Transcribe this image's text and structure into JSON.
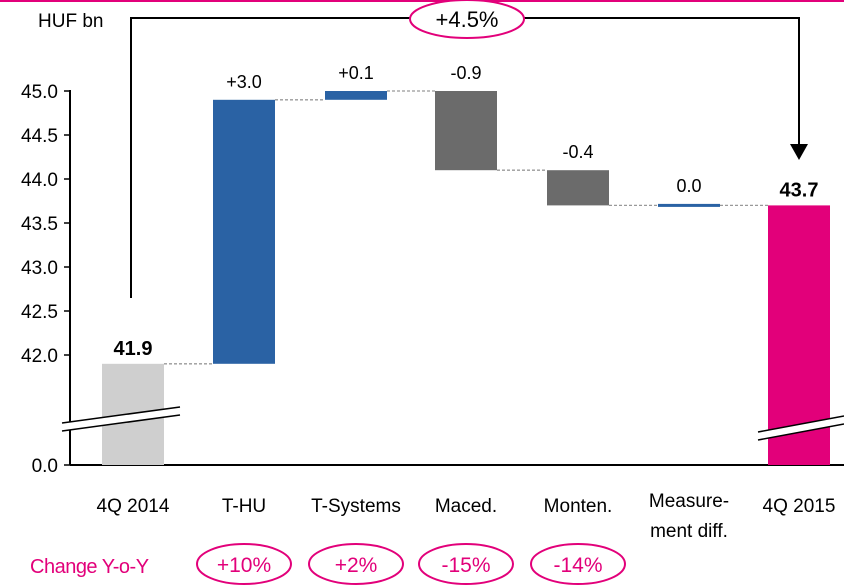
{
  "colors": {
    "accent": "#e2007a",
    "positive": "#2a62a4",
    "negative": "#6b6b6b",
    "start_total": "#cfcfcf",
    "end_total": "#e2007a"
  },
  "chart_data": {
    "type": "waterfall",
    "unit_label": "HUF bn",
    "y_ticks": [
      "45.0",
      "44.5",
      "44.0",
      "43.5",
      "43.0",
      "42.5",
      "42.0",
      "0.0"
    ],
    "ylim": [
      42.0,
      45.0
    ],
    "axis_break": true,
    "total_change": "+4.5%",
    "categories": [
      "4Q 2014",
      "T-HU",
      "T-Systems",
      "Maced.",
      "Monten.",
      "Measure-ment diff.",
      "4Q 2015"
    ],
    "category_lines": [
      [
        "4Q 2014"
      ],
      [
        "T-HU"
      ],
      [
        "T-Systems"
      ],
      [
        "Maced."
      ],
      [
        "Monten."
      ],
      [
        "Measure-",
        "ment diff."
      ],
      [
        "4Q 2015"
      ]
    ],
    "bars": [
      {
        "kind": "total",
        "value": 41.9,
        "label": "41.9"
      },
      {
        "kind": "delta",
        "value": 3.0,
        "label": "+3.0"
      },
      {
        "kind": "delta",
        "value": 0.1,
        "label": "+0.1"
      },
      {
        "kind": "delta",
        "value": -0.9,
        "label": "-0.9"
      },
      {
        "kind": "delta",
        "value": -0.4,
        "label": "-0.4"
      },
      {
        "kind": "delta",
        "value": 0.0,
        "label": "0.0"
      },
      {
        "kind": "total",
        "value": 43.7,
        "label": "43.7"
      }
    ],
    "change_yoy": {
      "label": "Change Y-o-Y",
      "values": [
        "+10%",
        "+2%",
        "-15%",
        "-14%"
      ]
    }
  }
}
